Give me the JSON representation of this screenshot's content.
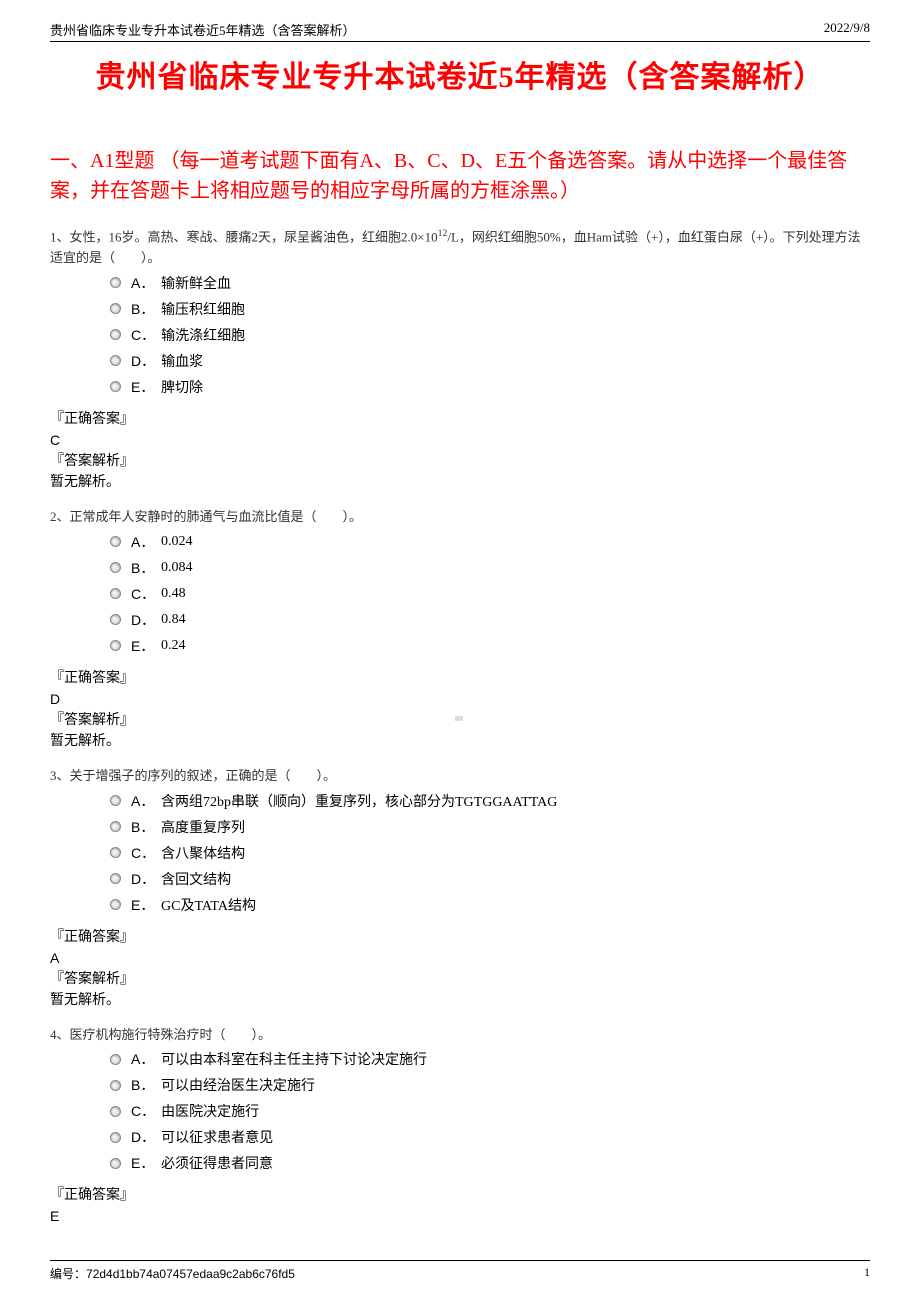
{
  "header": {
    "left": "贵州省临床专业专升本试卷近5年精选（含答案解析）",
    "right": "2022/9/8"
  },
  "main_title": "贵州省临床专业专升本试卷近5年精选（含答案解析）",
  "section_title": "一、A1型题 （每一道考试题下面有A、B、C、D、E五个备选答案。请从中选择一个最佳答案，并在答题卡上将相应题号的相应字母所属的方框涂黑。）",
  "questions": [
    {
      "stem_prefix": "1、女性，16岁。高热、寒战、腰痛2天，尿呈酱油色，红细胞2.0×10",
      "stem_sup": "12",
      "stem_suffix": "/L，网织红细胞50%，血Ham试验（+），血红蛋白尿（+）。下列处理方法适宜的是（　　）。",
      "options": [
        {
          "letter": "A．",
          "text": "输新鲜全血"
        },
        {
          "letter": "B．",
          "text": "输压积红细胞"
        },
        {
          "letter": "C．",
          "text": "输洗涤红细胞"
        },
        {
          "letter": "D．",
          "text": "输血浆"
        },
        {
          "letter": "E．",
          "text": "脾切除"
        }
      ],
      "correct_label": "『正确答案』",
      "correct_value": "C",
      "analysis_label": "『答案解析』",
      "analysis_text": "暂无解析。"
    },
    {
      "stem": "2、正常成年人安静时的肺通气与血流比值是（　　）。",
      "options": [
        {
          "letter": "A．",
          "text": "0.024"
        },
        {
          "letter": "B．",
          "text": "0.084"
        },
        {
          "letter": "C．",
          "text": "0.48"
        },
        {
          "letter": "D．",
          "text": "0.84"
        },
        {
          "letter": "E．",
          "text": "0.24"
        }
      ],
      "correct_label": "『正确答案』",
      "correct_value": "D",
      "analysis_label": "『答案解析』",
      "analysis_text": "暂无解析。"
    },
    {
      "stem": "3、关于增强子的序列的叙述，正确的是（　　）。",
      "options": [
        {
          "letter": "A．",
          "text": "含两组72bp串联（顺向）重复序列，核心部分为TGTGGAATTAG"
        },
        {
          "letter": "B．",
          "text": "高度重复序列"
        },
        {
          "letter": "C．",
          "text": "含八聚体结构"
        },
        {
          "letter": "D．",
          "text": "含回文结构"
        },
        {
          "letter": "E．",
          "text": "GC及TATA结构"
        }
      ],
      "correct_label": "『正确答案』",
      "correct_value": "A",
      "analysis_label": "『答案解析』",
      "analysis_text": "暂无解析。"
    },
    {
      "stem": "4、医疗机构施行特殊治疗时（　　）。",
      "options": [
        {
          "letter": "A．",
          "text": "可以由本科室在科主任主持下讨论决定施行"
        },
        {
          "letter": "B．",
          "text": "可以由经治医生决定施行"
        },
        {
          "letter": "C．",
          "text": "由医院决定施行"
        },
        {
          "letter": "D．",
          "text": "可以征求患者意见"
        },
        {
          "letter": "E．",
          "text": "必须征得患者同意"
        }
      ],
      "correct_label": "『正确答案』",
      "correct_value": "E"
    }
  ],
  "footer": {
    "id_label": "编号：",
    "id_value": "72d4d1bb74a07457edaa9c2ab6c76fd5",
    "page_number": "1"
  },
  "colors": {
    "title_red": "#ff0000",
    "text_black": "#000000",
    "stem_gray": "#333333",
    "background": "#ffffff"
  }
}
